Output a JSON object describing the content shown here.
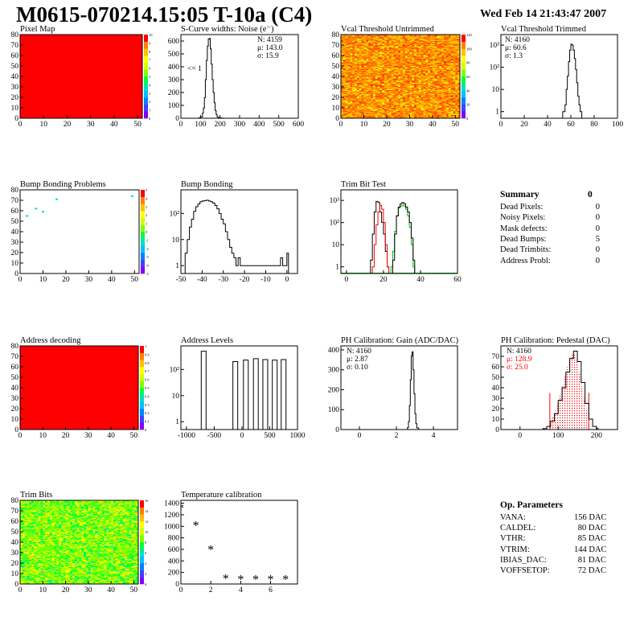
{
  "header": {
    "title": "M0615-070214.15:05 T-10a (C4)",
    "datestamp": "Wed Feb 14 21:43:47 2007"
  },
  "chart_data": [
    {
      "id": "pixel_map",
      "type": "heatmap",
      "title": "Pixel Map",
      "xlim": [
        0,
        52
      ],
      "ylim": [
        0,
        80
      ],
      "xticks": [
        "0",
        "10",
        "20",
        "30",
        "40",
        "50"
      ],
      "yticks": [
        "0",
        "10",
        "20",
        "30",
        "40",
        "50",
        "60",
        "70",
        "80"
      ],
      "zticks": [
        "0",
        "1",
        "2",
        "3",
        "4",
        "5",
        "6",
        "7",
        "8",
        "9",
        "10"
      ],
      "fill_color": "#ff0000"
    },
    {
      "id": "scurve",
      "type": "line",
      "title": "S-Curve widths: Noise (e⁻)",
      "xlim": [
        0,
        600
      ],
      "ylim": [
        0,
        650
      ],
      "xticks": [
        "0",
        "100",
        "200",
        "300",
        "400",
        "500",
        "600"
      ],
      "yticks": [
        "0",
        "100",
        "200",
        "300",
        "400",
        "500",
        "600"
      ],
      "stats": [
        "N: 4159",
        "μ: 143.0",
        "σ: 15.9"
      ],
      "annotation": "<= 1",
      "x": [
        70,
        90,
        100,
        110,
        115,
        120,
        125,
        130,
        135,
        140,
        145,
        150,
        155,
        160,
        165,
        170,
        175,
        180,
        185,
        190,
        200,
        210,
        220
      ],
      "y": [
        0,
        2,
        10,
        40,
        80,
        160,
        300,
        450,
        560,
        615,
        620,
        540,
        420,
        300,
        200,
        120,
        60,
        30,
        12,
        5,
        2,
        1,
        0
      ]
    },
    {
      "id": "vcal_untrimmed",
      "type": "heatmap",
      "title": "Vcal Threshold Untrimmed",
      "xlim": [
        0,
        52
      ],
      "ylim": [
        0,
        80
      ],
      "xticks": [
        "0",
        "10",
        "20",
        "30",
        "40",
        "50"
      ],
      "yticks": [
        "0",
        "10",
        "20",
        "30",
        "40",
        "50",
        "60",
        "70",
        "80"
      ],
      "zticks": [
        "0",
        "20",
        "40",
        "60",
        "80",
        "100",
        "120"
      ]
    },
    {
      "id": "vcal_trimmed",
      "type": "line",
      "title": "Vcal Threshold Trimmed",
      "logy": true,
      "xlim": [
        0,
        100
      ],
      "ylim": [
        0.5,
        3000
      ],
      "xticks": [
        "0",
        "20",
        "40",
        "60",
        "80",
        "100"
      ],
      "yticks": [
        "1",
        "10",
        "10²",
        "10³"
      ],
      "stats": [
        "N: 4160",
        "μ: 60.6",
        "σ: 1.3"
      ],
      "x": [
        53,
        55,
        56,
        57,
        58,
        59,
        60,
        61,
        62,
        63,
        64,
        65,
        66,
        67,
        68
      ],
      "y": [
        1,
        2,
        10,
        40,
        180,
        600,
        1100,
        1000,
        600,
        250,
        80,
        20,
        5,
        2,
        1
      ]
    },
    {
      "id": "bump_problems",
      "type": "scatter",
      "title": "Bump Bonding Problems",
      "xlim": [
        0,
        52
      ],
      "ylim": [
        0,
        80
      ],
      "xticks": [
        "0",
        "10",
        "20",
        "30",
        "40",
        "50"
      ],
      "yticks": [
        "0",
        "10",
        "20",
        "30",
        "40",
        "50",
        "60",
        "70",
        "80"
      ],
      "zticks": [
        "-5",
        "-4",
        "-3",
        "-2",
        "-1",
        "0",
        "1",
        "2",
        "3",
        "4",
        "5"
      ],
      "points": [
        [
          3,
          55
        ],
        [
          7,
          62
        ],
        [
          10,
          59
        ],
        [
          16,
          71
        ],
        [
          49,
          74
        ]
      ]
    },
    {
      "id": "bump_bonding",
      "type": "line",
      "title": "Bump Bonding",
      "logy": true,
      "xlim": [
        -50,
        5
      ],
      "ylim": [
        0.5,
        800
      ],
      "xticks": [
        "-50",
        "-40",
        "-30",
        "-20",
        "-10",
        "0"
      ],
      "yticks": [
        "1",
        "10",
        "10²"
      ],
      "x": [
        -48,
        -47,
        -46,
        -45,
        -44,
        -43,
        -42,
        -41,
        -40,
        -39,
        -38,
        -37,
        -36,
        -35,
        -34,
        -33,
        -32,
        -31,
        -30,
        -29,
        -28,
        -27,
        -26,
        -25,
        -24,
        -23,
        -22,
        -21,
        -19,
        -17,
        -15,
        -13,
        -3,
        -2,
        0
      ],
      "y": [
        3,
        10,
        30,
        60,
        120,
        180,
        230,
        280,
        300,
        310,
        320,
        300,
        280,
        250,
        200,
        150,
        100,
        60,
        40,
        20,
        10,
        5,
        3,
        2,
        1,
        2,
        1,
        1,
        1,
        1,
        1,
        1,
        2,
        1,
        3
      ]
    },
    {
      "id": "trim_bit_test",
      "type": "line",
      "title": "Trim Bit Test",
      "logy": true,
      "xlim": [
        -3,
        60
      ],
      "ylim": [
        0.5,
        3000
      ],
      "xticks": [
        "0",
        "20",
        "40",
        "60"
      ],
      "yticks": [
        "1",
        "10",
        "10²",
        "10³"
      ],
      "series": [
        {
          "color": "#000000",
          "x": [
            13,
            14,
            15,
            16,
            17,
            18,
            19,
            20,
            21,
            22
          ],
          "y": [
            2,
            30,
            300,
            900,
            800,
            300,
            100,
            30,
            5,
            1
          ]
        },
        {
          "color": "#ff0000",
          "x": [
            14,
            15,
            16,
            17,
            18,
            19,
            20,
            21,
            22
          ],
          "y": [
            1,
            10,
            80,
            300,
            600,
            400,
            100,
            10,
            1
          ]
        },
        {
          "color": "#00c000",
          "x": [
            24,
            25,
            26,
            27,
            28,
            29,
            30,
            31,
            32,
            33,
            34,
            35,
            36
          ],
          "y": [
            1,
            5,
            40,
            200,
            450,
            550,
            600,
            550,
            400,
            200,
            60,
            10,
            1
          ]
        },
        {
          "color": "#000000",
          "x": [
            25,
            26,
            27,
            28,
            29,
            30,
            31,
            32,
            33,
            34,
            35,
            36
          ],
          "y": [
            2,
            30,
            200,
            500,
            700,
            800,
            700,
            500,
            300,
            100,
            20,
            2
          ]
        }
      ]
    },
    {
      "id": "address_decoding",
      "type": "heatmap",
      "title": "Address decoding",
      "xlim": [
        0,
        52
      ],
      "ylim": [
        0,
        80
      ],
      "xticks": [
        "0",
        "10",
        "20",
        "30",
        "40",
        "50"
      ],
      "yticks": [
        "0",
        "10",
        "20",
        "30",
        "40",
        "50",
        "60",
        "70",
        "80"
      ],
      "zticks": [
        "0",
        "0.1",
        "0.2",
        "0.3",
        "0.4",
        "0.5",
        "0.6",
        "0.7",
        "0.8",
        "0.9",
        "1"
      ],
      "fill_color": "#ff0000"
    },
    {
      "id": "address_levels",
      "type": "line",
      "title": "Address Levels",
      "logy": true,
      "xlim": [
        -1100,
        1000
      ],
      "ylim": [
        0.5,
        800
      ],
      "xticks": [
        "-1000",
        "-500",
        "0",
        "500",
        "1000"
      ],
      "yticks": [
        "1",
        "10",
        "10²"
      ],
      "peaks": [
        {
          "center": -690,
          "height": 500
        },
        {
          "center": -120,
          "height": 200
        },
        {
          "center": 70,
          "height": 230
        },
        {
          "center": 250,
          "height": 260
        },
        {
          "center": 420,
          "height": 240
        },
        {
          "center": 590,
          "height": 230
        },
        {
          "center": 750,
          "height": 240
        }
      ]
    },
    {
      "id": "ph_gain",
      "type": "line",
      "title": "PH Calibration: Gain (ADC/DAC)",
      "xlim": [
        -1,
        5.3
      ],
      "ylim": [
        0,
        420
      ],
      "xticks": [
        "0",
        "2",
        "4"
      ],
      "yticks": [
        "0",
        "100",
        "200",
        "300",
        "400"
      ],
      "stats": [
        "N: 4160",
        "μ: 2.87",
        "σ: 0.10"
      ],
      "x": [
        2.5,
        2.6,
        2.65,
        2.7,
        2.75,
        2.8,
        2.85,
        2.9,
        2.95,
        3.0,
        3.05,
        3.1,
        3.2
      ],
      "y": [
        0,
        10,
        40,
        120,
        250,
        370,
        390,
        300,
        180,
        80,
        30,
        8,
        0
      ]
    },
    {
      "id": "ph_pedestal",
      "type": "line",
      "title": "PH Calibration: Pedestal (DAC)",
      "xlim": [
        -50,
        255
      ],
      "ylim": [
        0,
        80
      ],
      "xticks": [
        "0",
        "100",
        "200"
      ],
      "yticks": [
        "0",
        "10",
        "20",
        "30",
        "40",
        "50",
        "60",
        "70"
      ],
      "stats": [
        "N: 4160",
        "μ: 128.9",
        "σ: 25.0"
      ],
      "stats_colors": [
        "#000000",
        "#ff0000",
        "#ff0000"
      ],
      "fit_lines_x": [
        78,
        180
      ],
      "x": [
        60,
        70,
        80,
        90,
        100,
        110,
        120,
        130,
        140,
        150,
        160,
        170,
        180,
        190,
        200
      ],
      "y": [
        1,
        3,
        8,
        15,
        28,
        40,
        55,
        68,
        75,
        65,
        45,
        25,
        10,
        3,
        1
      ]
    },
    {
      "id": "trim_bits",
      "type": "heatmap",
      "title": "Trim Bits",
      "xlim": [
        0,
        52
      ],
      "ylim": [
        0,
        80
      ],
      "xticks": [
        "0",
        "10",
        "20",
        "30",
        "40",
        "50"
      ],
      "yticks": [
        "0",
        "10",
        "20",
        "30",
        "40",
        "50",
        "60",
        "70",
        "80"
      ],
      "zticks": [
        "0",
        "2",
        "4",
        "6",
        "8",
        "10",
        "12",
        "14",
        "16"
      ]
    },
    {
      "id": "temp_cal",
      "type": "scatter",
      "title": "Temperature calibration",
      "xlim": [
        0,
        7.8
      ],
      "ylim": [
        0,
        1450
      ],
      "xticks": [
        "0",
        "2",
        "4",
        "6"
      ],
      "yticks": [
        "0",
        "200",
        "400",
        "600",
        "800",
        "1000",
        "1200",
        "1400"
      ],
      "x": [
        0,
        1,
        2,
        3,
        4,
        5,
        6,
        7
      ],
      "y": [
        1300,
        1000,
        580,
        80,
        60,
        60,
        60,
        60
      ]
    }
  ],
  "summary": {
    "title": "Summary",
    "title_value": "0",
    "rows": [
      {
        "label": "Dead Pixels:",
        "value": "0"
      },
      {
        "label": "Noisy Pixels:",
        "value": "0"
      },
      {
        "label": "Mask defects:",
        "value": "0"
      },
      {
        "label": "Dead Bumps:",
        "value": "5"
      },
      {
        "label": "Dead Trimbits:",
        "value": "0"
      },
      {
        "label": "Address Probl:",
        "value": "0"
      }
    ]
  },
  "op_params": {
    "title": "Op. Parameters",
    "rows": [
      {
        "label": "VANA:",
        "value": "156 DAC"
      },
      {
        "label": "CALDEL:",
        "value": "80 DAC"
      },
      {
        "label": "VTHR:",
        "value": "85 DAC"
      },
      {
        "label": "VTRIM:",
        "value": "144 DAC"
      },
      {
        "label": "IBIAS_DAC:",
        "value": "81 DAC"
      },
      {
        "label": "VOFFSETOP:",
        "value": "72 DAC"
      }
    ]
  }
}
